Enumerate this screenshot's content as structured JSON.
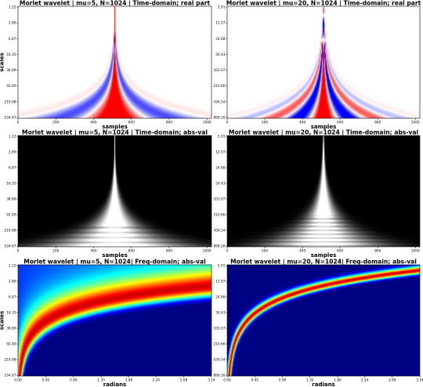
{
  "chart_data": [
    {
      "type": "heatmap",
      "panel": "real-1",
      "title": "Morlet wavelet | mu=5, N=1024 | Time-domain; real part",
      "xlabel": "samples",
      "ylabel": "scales",
      "xlim": [
        0,
        1024
      ],
      "xticks": [
        "0",
        "200",
        "400",
        "600",
        "800",
        "1000"
      ],
      "yticks": [
        "1.22",
        "2.89",
        "6.87",
        "16.35",
        "38.89",
        "92.49",
        "219.98",
        "534.67"
      ],
      "colormap": "bwr",
      "mu": 5
    },
    {
      "type": "heatmap",
      "panel": "real-2",
      "title": "Morlet wavelet | mu=20, N=1024 | Time-domain; real part",
      "xlabel": "samples",
      "ylabel": "",
      "xlim": [
        0,
        1024
      ],
      "xticks": [
        "0",
        "200",
        "400",
        "600",
        "800",
        "1000"
      ],
      "yticks": [
        "5.91",
        "12.07",
        "24.68",
        "50.43",
        "103.07",
        "210.66",
        "430.54",
        "899.26"
      ],
      "colormap": "bwr",
      "mu": 20
    },
    {
      "type": "heatmap",
      "panel": "abs-1",
      "title": "Morlet wavelet | mu=5, N=1024 | Time-domain; abs-val",
      "xlabel": "samples",
      "ylabel": "",
      "xlim": [
        0,
        1024
      ],
      "xticks": [
        "0",
        "200",
        "400",
        "600",
        "800",
        "1000"
      ],
      "yticks": [
        "1.22",
        "2.89",
        "6.87",
        "16.35",
        "38.89",
        "92.49",
        "219.98",
        "534.67"
      ],
      "colormap": "gray",
      "mu": 5
    },
    {
      "type": "heatmap",
      "panel": "abs-2",
      "title": "Morlet wavelet | mu=20, N=1024 | Time-domain; abs-val",
      "xlabel": "samples",
      "ylabel": "",
      "xlim": [
        0,
        1024
      ],
      "xticks": [
        "0",
        "200",
        "400",
        "600",
        "800",
        "1000"
      ],
      "yticks": [
        "5.91",
        "12.07",
        "24.68",
        "50.43",
        "103.07",
        "210.66",
        "430.54",
        "899.26"
      ],
      "colormap": "gray",
      "mu": 20
    },
    {
      "type": "heatmap",
      "panel": "freq-1",
      "title": "Morlet wavelet | mu=5, N=1024| Freq-domain; abs-val",
      "xlabel": "radians",
      "ylabel": "scales",
      "xlim": [
        0,
        3.14
      ],
      "xticks": [
        "0.00",
        "0.45",
        "0.90",
        "1.35",
        "1.80",
        "2.24",
        "2.69",
        "3.14"
      ],
      "yticks": [
        "1.22",
        "2.89",
        "6.87",
        "16.35",
        "38.89",
        "92.49",
        "219.98",
        "534.67"
      ],
      "colormap": "jet",
      "mu": 5
    },
    {
      "type": "heatmap",
      "panel": "freq-2",
      "title": "Morlet wavelet | mu=20, N=1024| Freq-domain; abs-val",
      "xlabel": "radians",
      "ylabel": "",
      "xlim": [
        0,
        3.14
      ],
      "xticks": [
        "0.00",
        "0.45",
        "0.90",
        "1.35",
        "1.80",
        "2.24",
        "2.69",
        "3.14"
      ],
      "yticks": [
        "5.91",
        "12.07",
        "24.68",
        "50.43",
        "103.07",
        "210.66",
        "430.54",
        "899.26"
      ],
      "colormap": "jet",
      "mu": 20
    }
  ]
}
